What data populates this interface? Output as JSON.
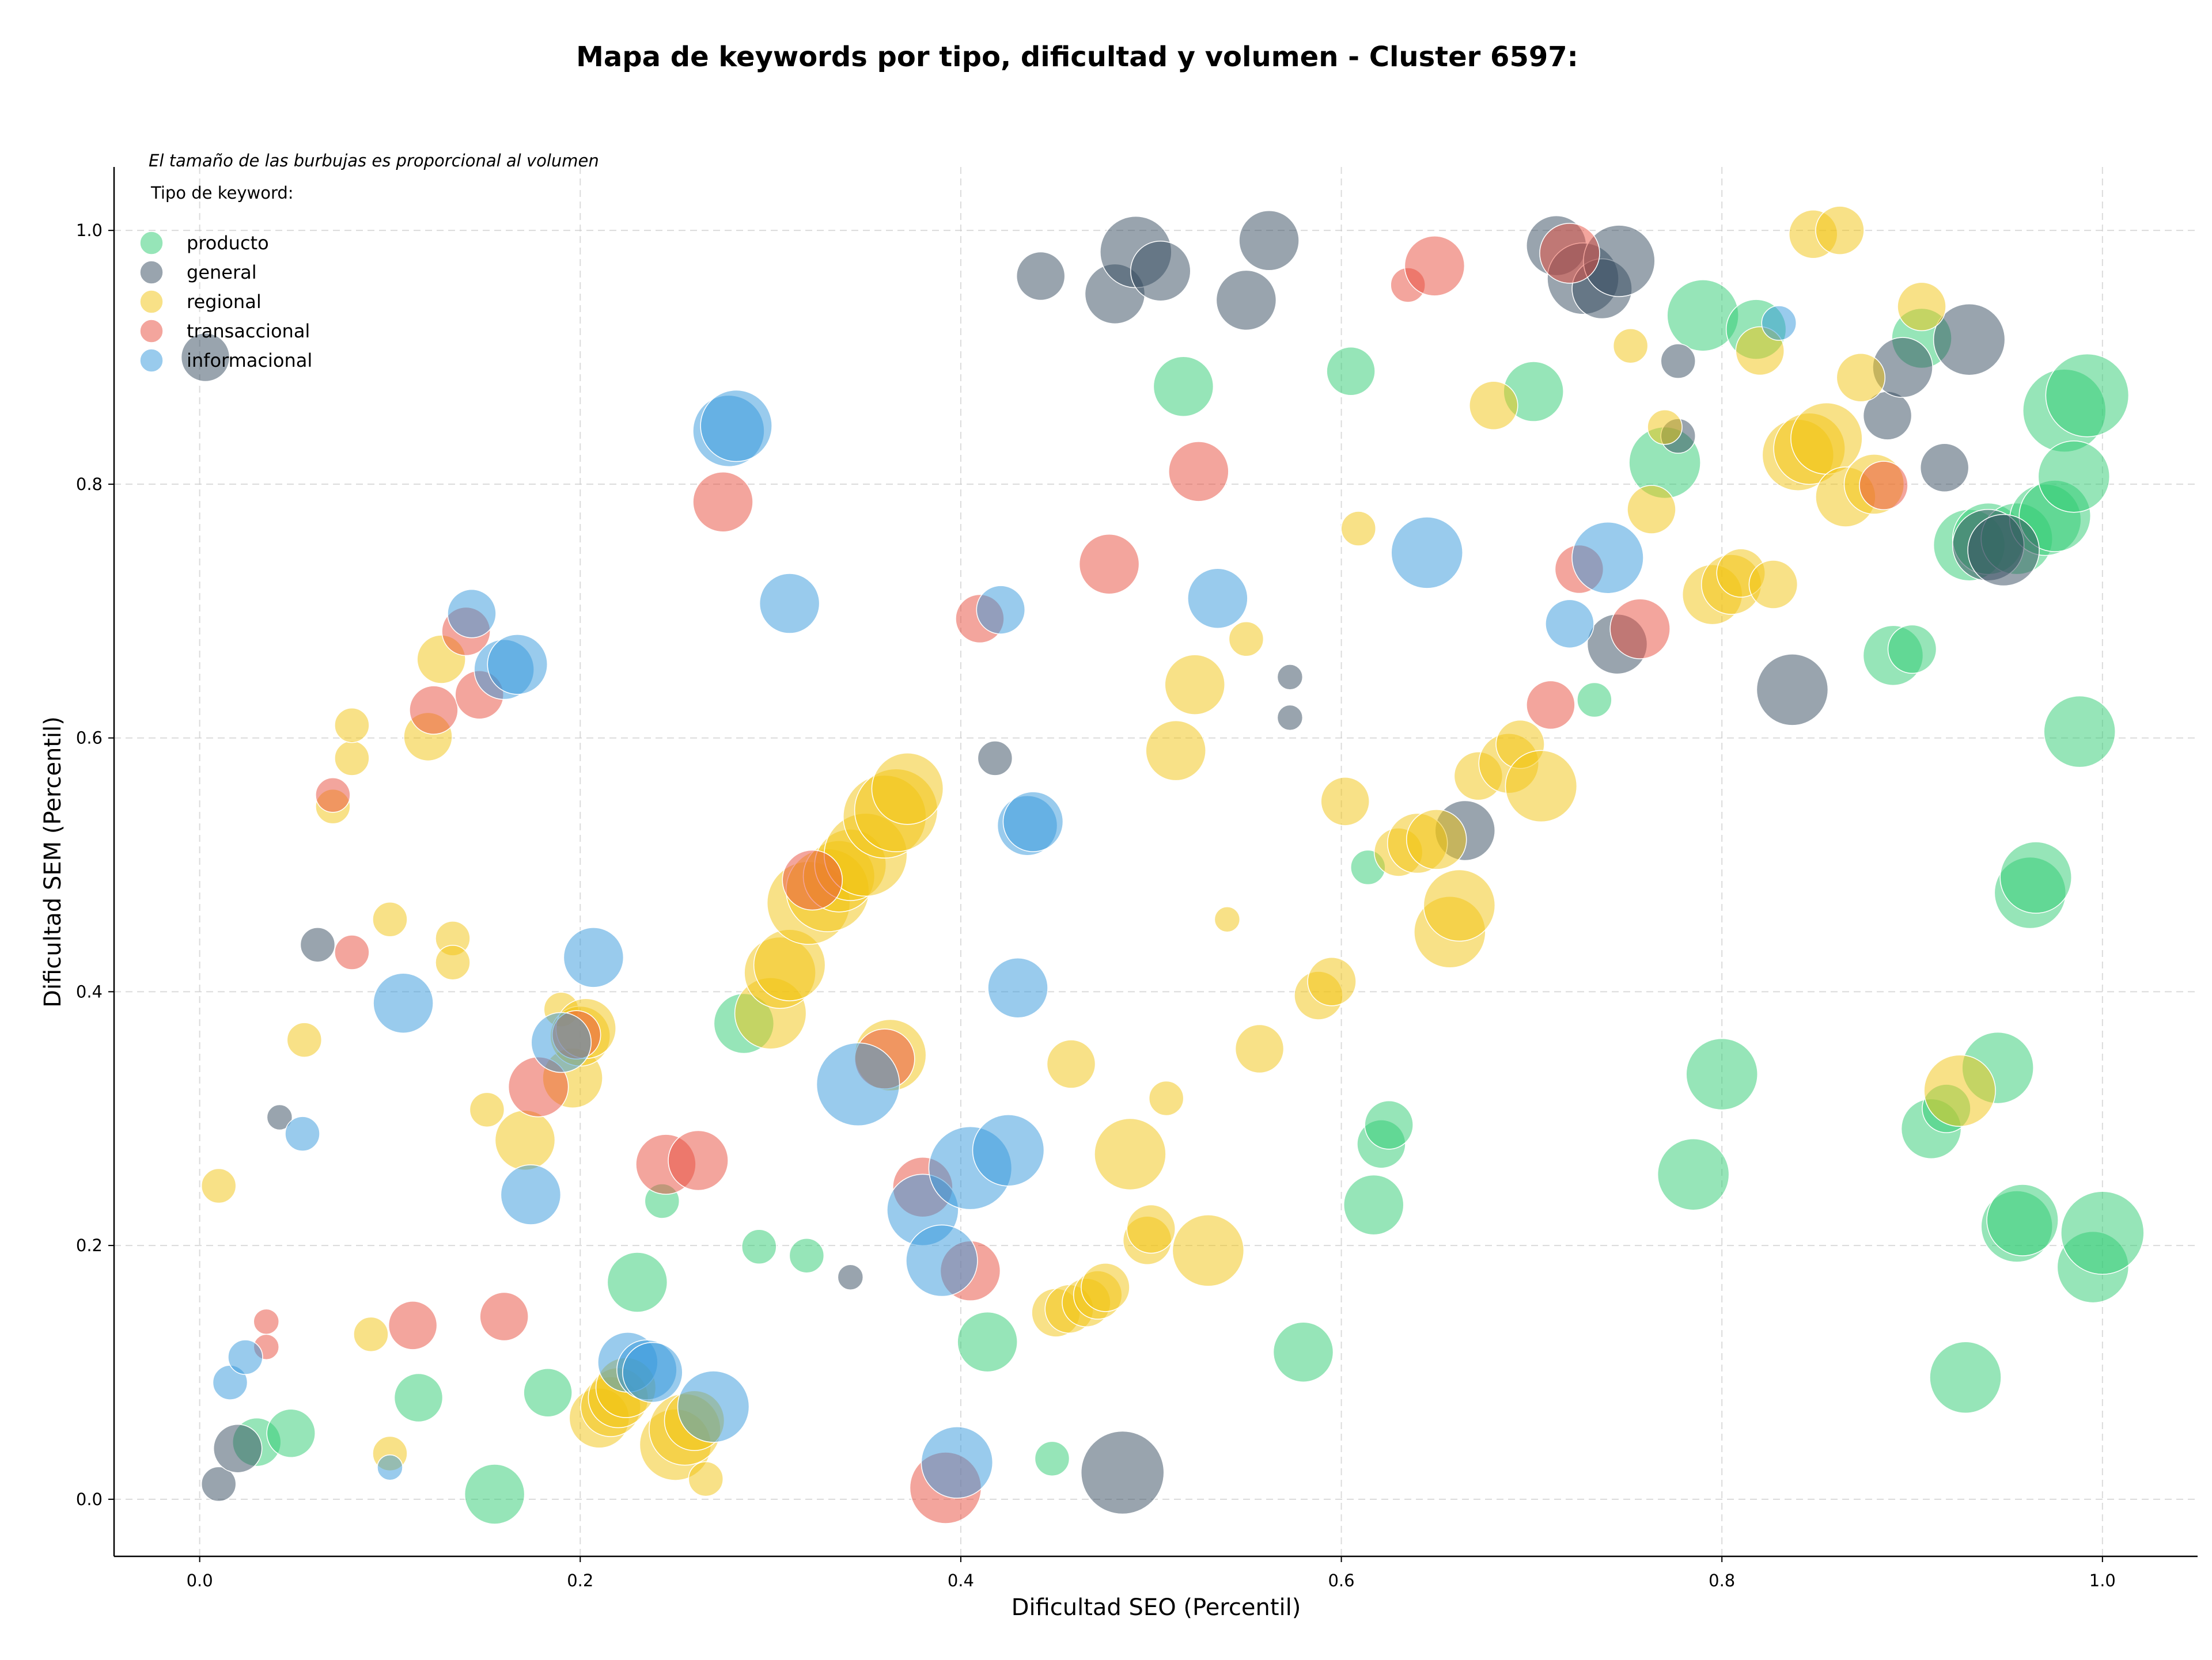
{
  "chart_data": {
    "type": "scatter",
    "title": "Mapa de keywords por tipo, dificultad y volumen - Cluster 6597:",
    "xlabel": "Dificultad SEO (Percentil)",
    "ylabel": "Dificultad SEM (Percentil)",
    "xlim": [
      -0.045,
      1.05
    ],
    "ylim": [
      -0.045,
      1.05
    ],
    "xticks": [
      "0.0",
      "0.2",
      "0.4",
      "0.6",
      "0.8",
      "1.0"
    ],
    "yticks": [
      "0.0",
      "0.2",
      "0.4",
      "0.6",
      "0.8",
      "1.0"
    ],
    "grid": true,
    "size_note": "El tamaño de las burbujas es proporcional al volumen",
    "legend_title": "Tipo de keyword:",
    "legend_position": "top-left",
    "colors": {
      "producto": "#2ecc71",
      "general": "#34495e",
      "regional": "#f1c40f",
      "transaccional": "#e74c3c",
      "informacional": "#3498db"
    },
    "series": [
      {
        "name": "producto",
        "points": [
          [
            0.03,
            0.045,
            3
          ],
          [
            0.048,
            0.052,
            3
          ],
          [
            0.115,
            0.08,
            3
          ],
          [
            0.155,
            0.004,
            4
          ],
          [
            0.183,
            0.084,
            3
          ],
          [
            0.23,
            0.171,
            4
          ],
          [
            0.243,
            0.235,
            2
          ],
          [
            0.286,
            0.375,
            4
          ],
          [
            0.294,
            0.199,
            2
          ],
          [
            0.319,
            0.192,
            2
          ],
          [
            0.414,
            0.124,
            4
          ],
          [
            0.448,
            0.032,
            2
          ],
          [
            0.517,
            0.877,
            4
          ],
          [
            0.58,
            0.116,
            4
          ],
          [
            0.605,
            0.889,
            3
          ],
          [
            0.614,
            0.498,
            2
          ],
          [
            0.617,
            0.232,
            4
          ],
          [
            0.621,
            0.28,
            3
          ],
          [
            0.625,
            0.295,
            3
          ],
          [
            0.701,
            0.873,
            4
          ],
          [
            0.733,
            0.63,
            2
          ],
          [
            0.77,
            0.817,
            5
          ],
          [
            0.785,
            0.256,
            5
          ],
          [
            0.79,
            0.933,
            5
          ],
          [
            0.8,
            0.335,
            5
          ],
          [
            0.818,
            0.922,
            4
          ],
          [
            0.89,
            0.665,
            4
          ],
          [
            0.9,
            0.67,
            3
          ],
          [
            0.905,
            0.915,
            4
          ],
          [
            0.91,
            0.292,
            4
          ],
          [
            0.918,
            0.308,
            3
          ],
          [
            0.928,
            0.096,
            5
          ],
          [
            0.93,
            0.752,
            5
          ],
          [
            0.94,
            0.757,
            5
          ],
          [
            0.945,
            0.34,
            5
          ],
          [
            0.955,
            0.757,
            5
          ],
          [
            0.955,
            0.215,
            5
          ],
          [
            0.958,
            0.22,
            5
          ],
          [
            0.962,
            0.478,
            5
          ],
          [
            0.965,
            0.49,
            5
          ],
          [
            0.97,
            0.772,
            5
          ],
          [
            0.975,
            0.775,
            5
          ],
          [
            0.98,
            0.858,
            6
          ],
          [
            0.985,
            0.806,
            5
          ],
          [
            0.988,
            0.605,
            5
          ],
          [
            0.992,
            0.87,
            6
          ],
          [
            0.995,
            0.183,
            5
          ],
          [
            1.0,
            0.21,
            6
          ]
        ]
      },
      {
        "name": "general",
        "points": [
          [
            0.003,
            0.9,
            3
          ],
          [
            0.01,
            0.012,
            2
          ],
          [
            0.02,
            0.04,
            3
          ],
          [
            0.042,
            0.301,
            1
          ],
          [
            0.062,
            0.437,
            2
          ],
          [
            0.342,
            0.175,
            1
          ],
          [
            0.418,
            0.584,
            2
          ],
          [
            0.442,
            0.964,
            3
          ],
          [
            0.481,
            0.95,
            4
          ],
          [
            0.485,
            0.021,
            6
          ],
          [
            0.492,
            0.983,
            5
          ],
          [
            0.505,
            0.968,
            4
          ],
          [
            0.55,
            0.945,
            4
          ],
          [
            0.562,
            0.992,
            4
          ],
          [
            0.573,
            0.648,
            1
          ],
          [
            0.573,
            0.616,
            1
          ],
          [
            0.665,
            0.527,
            4
          ],
          [
            0.713,
            0.988,
            4
          ],
          [
            0.727,
            0.962,
            5
          ],
          [
            0.737,
            0.954,
            4
          ],
          [
            0.746,
            0.976,
            5
          ],
          [
            0.745,
            0.674,
            4
          ],
          [
            0.777,
            0.838,
            2
          ],
          [
            0.777,
            0.897,
            2
          ],
          [
            0.887,
            0.854,
            3
          ],
          [
            0.895,
            0.892,
            4
          ],
          [
            0.917,
            0.813,
            3
          ],
          [
            0.93,
            0.914,
            5
          ],
          [
            0.94,
            0.752,
            5
          ],
          [
            0.948,
            0.748,
            5
          ],
          [
            0.837,
            0.638,
            5
          ]
        ]
      },
      {
        "name": "regional",
        "points": [
          [
            0.01,
            0.247,
            2
          ],
          [
            0.055,
            0.362,
            2
          ],
          [
            0.07,
            0.546,
            2
          ],
          [
            0.08,
            0.584,
            2
          ],
          [
            0.08,
            0.61,
            2
          ],
          [
            0.09,
            0.13,
            2
          ],
          [
            0.1,
            0.457,
            2
          ],
          [
            0.1,
            0.036,
            2
          ],
          [
            0.12,
            0.601,
            3
          ],
          [
            0.127,
            0.662,
            3
          ],
          [
            0.133,
            0.442,
            2
          ],
          [
            0.133,
            0.423,
            2
          ],
          [
            0.151,
            0.307,
            2
          ],
          [
            0.171,
            0.283,
            4
          ],
          [
            0.19,
            0.386,
            2
          ],
          [
            0.196,
            0.332,
            4
          ],
          [
            0.2,
            0.365,
            4
          ],
          [
            0.203,
            0.371,
            4
          ],
          [
            0.21,
            0.064,
            4
          ],
          [
            0.216,
            0.073,
            4
          ],
          [
            0.22,
            0.08,
            4
          ],
          [
            0.224,
            0.088,
            4
          ],
          [
            0.25,
            0.043,
            5
          ],
          [
            0.255,
            0.055,
            5
          ],
          [
            0.26,
            0.062,
            4
          ],
          [
            0.266,
            0.016,
            2
          ],
          [
            0.3,
            0.383,
            5
          ],
          [
            0.305,
            0.415,
            5
          ],
          [
            0.31,
            0.421,
            5
          ],
          [
            0.32,
            0.47,
            6
          ],
          [
            0.33,
            0.48,
            6
          ],
          [
            0.336,
            0.491,
            5
          ],
          [
            0.342,
            0.5,
            5
          ],
          [
            0.35,
            0.508,
            6
          ],
          [
            0.36,
            0.538,
            6
          ],
          [
            0.366,
            0.543,
            6
          ],
          [
            0.372,
            0.56,
            5
          ],
          [
            0.363,
            0.35,
            5
          ],
          [
            0.458,
            0.343,
            3
          ],
          [
            0.45,
            0.147,
            3
          ],
          [
            0.457,
            0.15,
            3
          ],
          [
            0.466,
            0.155,
            3
          ],
          [
            0.472,
            0.161,
            3
          ],
          [
            0.476,
            0.167,
            3
          ],
          [
            0.489,
            0.272,
            5
          ],
          [
            0.498,
            0.204,
            3
          ],
          [
            0.5,
            0.213,
            3
          ],
          [
            0.508,
            0.316,
            2
          ],
          [
            0.513,
            0.59,
            4
          ],
          [
            0.523,
            0.642,
            4
          ],
          [
            0.53,
            0.196,
            5
          ],
          [
            0.54,
            0.457,
            1
          ],
          [
            0.55,
            0.678,
            2
          ],
          [
            0.557,
            0.355,
            3
          ],
          [
            0.588,
            0.397,
            3
          ],
          [
            0.595,
            0.408,
            3
          ],
          [
            0.602,
            0.55,
            3
          ],
          [
            0.609,
            0.765,
            2
          ],
          [
            0.63,
            0.51,
            3
          ],
          [
            0.64,
            0.517,
            4
          ],
          [
            0.65,
            0.52,
            4
          ],
          [
            0.657,
            0.447,
            5
          ],
          [
            0.662,
            0.468,
            5
          ],
          [
            0.68,
            0.862,
            3
          ],
          [
            0.672,
            0.57,
            3
          ],
          [
            0.688,
            0.58,
            4
          ],
          [
            0.694,
            0.595,
            3
          ],
          [
            0.705,
            0.562,
            5
          ],
          [
            0.752,
            0.909,
            2
          ],
          [
            0.763,
            0.78,
            3
          ],
          [
            0.77,
            0.845,
            2
          ],
          [
            0.795,
            0.713,
            4
          ],
          [
            0.805,
            0.721,
            4
          ],
          [
            0.81,
            0.73,
            3
          ],
          [
            0.827,
            0.721,
            3
          ],
          [
            0.82,
            0.905,
            3
          ],
          [
            0.84,
            0.823,
            5
          ],
          [
            0.846,
            0.828,
            5
          ],
          [
            0.855,
            0.836,
            5
          ],
          [
            0.848,
            0.997,
            3
          ],
          [
            0.862,
            1.0,
            3
          ],
          [
            0.865,
            0.79,
            4
          ],
          [
            0.873,
            0.884,
            3
          ],
          [
            0.88,
            0.8,
            4
          ],
          [
            0.905,
            0.94,
            3
          ],
          [
            0.925,
            0.322,
            5
          ]
        ]
      },
      {
        "name": "transaccional",
        "points": [
          [
            0.035,
            0.14,
            1
          ],
          [
            0.035,
            0.12,
            1
          ],
          [
            0.07,
            0.555,
            2
          ],
          [
            0.08,
            0.431,
            2
          ],
          [
            0.112,
            0.137,
            3
          ],
          [
            0.123,
            0.622,
            3
          ],
          [
            0.14,
            0.684,
            3
          ],
          [
            0.147,
            0.634,
            3
          ],
          [
            0.16,
            0.144,
            3
          ],
          [
            0.178,
            0.325,
            4
          ],
          [
            0.198,
            0.366,
            3
          ],
          [
            0.245,
            0.264,
            4
          ],
          [
            0.262,
            0.267,
            4
          ],
          [
            0.275,
            0.786,
            4
          ],
          [
            0.322,
            0.488,
            4
          ],
          [
            0.36,
            0.347,
            4
          ],
          [
            0.38,
            0.246,
            4
          ],
          [
            0.392,
            0.009,
            5
          ],
          [
            0.405,
            0.18,
            4
          ],
          [
            0.41,
            0.694,
            3
          ],
          [
            0.478,
            0.737,
            4
          ],
          [
            0.525,
            0.81,
            4
          ],
          [
            0.635,
            0.957,
            2
          ],
          [
            0.649,
            0.972,
            4
          ],
          [
            0.72,
            0.982,
            4
          ],
          [
            0.725,
            0.733,
            3
          ],
          [
            0.71,
            0.626,
            3
          ],
          [
            0.757,
            0.686,
            4
          ],
          [
            0.885,
            0.799,
            3
          ]
        ]
      },
      {
        "name": "informacional",
        "points": [
          [
            0.016,
            0.092,
            2
          ],
          [
            0.024,
            0.112,
            2
          ],
          [
            0.054,
            0.288,
            2
          ],
          [
            0.1,
            0.025,
            1
          ],
          [
            0.107,
            0.391,
            4
          ],
          [
            0.143,
            0.698,
            3
          ],
          [
            0.16,
            0.654,
            4
          ],
          [
            0.167,
            0.658,
            4
          ],
          [
            0.174,
            0.24,
            4
          ],
          [
            0.19,
            0.36,
            4
          ],
          [
            0.207,
            0.427,
            4
          ],
          [
            0.225,
            0.108,
            4
          ],
          [
            0.235,
            0.102,
            4
          ],
          [
            0.238,
            0.1,
            4
          ],
          [
            0.27,
            0.073,
            5
          ],
          [
            0.278,
            0.842,
            5
          ],
          [
            0.282,
            0.846,
            5
          ],
          [
            0.31,
            0.706,
            4
          ],
          [
            0.346,
            0.327,
            6
          ],
          [
            0.38,
            0.228,
            5
          ],
          [
            0.39,
            0.188,
            5
          ],
          [
            0.398,
            0.029,
            5
          ],
          [
            0.405,
            0.261,
            6
          ],
          [
            0.425,
            0.275,
            5
          ],
          [
            0.421,
            0.701,
            3
          ],
          [
            0.43,
            0.403,
            4
          ],
          [
            0.435,
            0.531,
            4
          ],
          [
            0.438,
            0.534,
            4
          ],
          [
            0.535,
            0.71,
            4
          ],
          [
            0.645,
            0.746,
            5
          ],
          [
            0.72,
            0.69,
            3
          ],
          [
            0.74,
            0.742,
            5
          ],
          [
            0.83,
            0.927,
            2
          ]
        ]
      }
    ]
  }
}
